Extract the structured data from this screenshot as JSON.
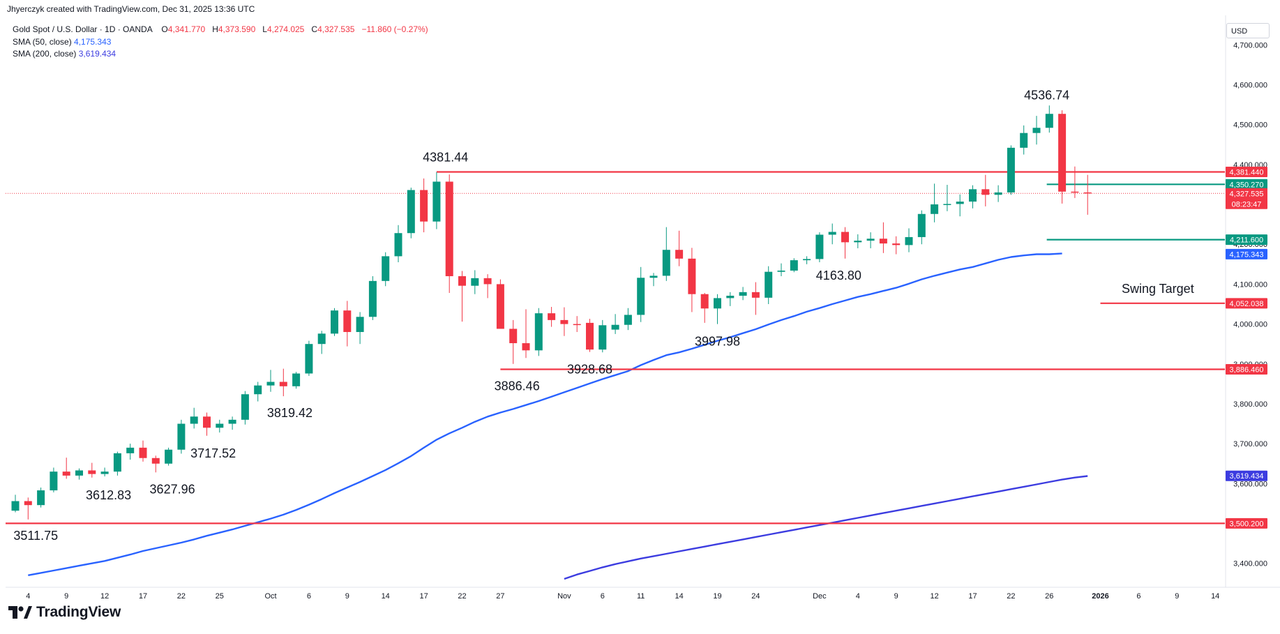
{
  "header": {
    "text": "Jhyerczyk created with TradingView.com, Dec 31, 2025 13:36 UTC"
  },
  "legend": {
    "title": "Gold Spot / U.S. Dollar · 1D · OANDA",
    "open_label": "O",
    "open": "4,341.770",
    "high_label": "H",
    "high": "4,373.590",
    "low_label": "L",
    "low": "4,274.025",
    "close_label": "C",
    "close": "4,327.535",
    "change": "−11.860 (−0.27%)",
    "sma50_label": "SMA (50, close)",
    "sma50_value": "4,175.343",
    "sma200_label": "SMA (200, close)",
    "sma200_value": "3,619.434"
  },
  "currency": "USD",
  "footer": {
    "brand": "TradingView",
    "logo_icon": "tradingview-logo-icon"
  },
  "colors": {
    "up": "#089981",
    "down": "#f23645",
    "sma50": "#2962ff",
    "sma200": "#3c3ce0",
    "level": "#f23645",
    "green_level": "#089981"
  },
  "chart_data": {
    "type": "candlestick",
    "symbol": "Gold Spot / U.S. Dollar",
    "timeframe": "1D",
    "ylim": [
      3340,
      4760
    ],
    "y_ticks": [
      3400,
      3500,
      3600,
      3700,
      3800,
      3900,
      4000,
      4100,
      4200,
      4300,
      4400,
      4500,
      4600,
      4700
    ],
    "y_tick_labels": [
      "3,400.000",
      "3,500.000",
      "3,600.000",
      "3,700.000",
      "3,800.000",
      "3,900.000",
      "4,000.000",
      "4,100.000",
      "4,200.000",
      "4,300.000",
      "4,400.000",
      "4,500.000",
      "4,600.000",
      "4,700.000"
    ],
    "x_ticks": [
      {
        "label": "4",
        "i": 1
      },
      {
        "label": "9",
        "i": 4
      },
      {
        "label": "12",
        "i": 7
      },
      {
        "label": "17",
        "i": 10
      },
      {
        "label": "22",
        "i": 13
      },
      {
        "label": "25",
        "i": 16
      },
      {
        "label": "Oct",
        "i": 20
      },
      {
        "label": "6",
        "i": 23
      },
      {
        "label": "9",
        "i": 26
      },
      {
        "label": "14",
        "i": 29
      },
      {
        "label": "17",
        "i": 32
      },
      {
        "label": "22",
        "i": 35
      },
      {
        "label": "27",
        "i": 38
      },
      {
        "label": "Nov",
        "i": 43
      },
      {
        "label": "6",
        "i": 46
      },
      {
        "label": "11",
        "i": 49
      },
      {
        "label": "14",
        "i": 52
      },
      {
        "label": "19",
        "i": 55
      },
      {
        "label": "24",
        "i": 58
      },
      {
        "label": "Dec",
        "i": 63
      },
      {
        "label": "4",
        "i": 66
      },
      {
        "label": "9",
        "i": 69
      },
      {
        "label": "12",
        "i": 72
      },
      {
        "label": "17",
        "i": 75
      },
      {
        "label": "22",
        "i": 78
      },
      {
        "label": "26",
        "i": 81
      },
      {
        "label": "2026",
        "i": 85
      },
      {
        "label": "6",
        "i": 88
      },
      {
        "label": "9",
        "i": 91
      },
      {
        "label": "14",
        "i": 94
      }
    ],
    "candles": [
      [
        3532,
        3572,
        3528,
        3556
      ],
      [
        3556,
        3565,
        3510,
        3546
      ],
      [
        3546,
        3590,
        3540,
        3583
      ],
      [
        3583,
        3640,
        3578,
        3630
      ],
      [
        3630,
        3665,
        3612,
        3620
      ],
      [
        3620,
        3638,
        3610,
        3633
      ],
      [
        3633,
        3652,
        3615,
        3624
      ],
      [
        3624,
        3640,
        3618,
        3630
      ],
      [
        3630,
        3680,
        3620,
        3676
      ],
      [
        3676,
        3700,
        3660,
        3690
      ],
      [
        3690,
        3708,
        3655,
        3664
      ],
      [
        3664,
        3670,
        3628,
        3650
      ],
      [
        3650,
        3690,
        3645,
        3685
      ],
      [
        3685,
        3760,
        3675,
        3750
      ],
      [
        3750,
        3790,
        3738,
        3768
      ],
      [
        3768,
        3778,
        3720,
        3740
      ],
      [
        3740,
        3760,
        3728,
        3750
      ],
      [
        3750,
        3768,
        3735,
        3760
      ],
      [
        3760,
        3832,
        3748,
        3824
      ],
      [
        3824,
        3855,
        3806,
        3846
      ],
      [
        3846,
        3885,
        3830,
        3855
      ],
      [
        3855,
        3888,
        3819,
        3844
      ],
      [
        3844,
        3880,
        3838,
        3876
      ],
      [
        3876,
        3958,
        3870,
        3950
      ],
      [
        3950,
        3983,
        3925,
        3976
      ],
      [
        3976,
        4040,
        3970,
        4034
      ],
      [
        4034,
        4058,
        3944,
        3980
      ],
      [
        3980,
        4030,
        3950,
        4018
      ],
      [
        4018,
        4120,
        4010,
        4108
      ],
      [
        4108,
        4180,
        4095,
        4170
      ],
      [
        4170,
        4248,
        4155,
        4228
      ],
      [
        4228,
        4342,
        4215,
        4336
      ],
      [
        4336,
        4365,
        4230,
        4257
      ],
      [
        4257,
        4381,
        4238,
        4357
      ],
      [
        4357,
        4375,
        4078,
        4120
      ],
      [
        4120,
        4133,
        4006,
        4096
      ],
      [
        4096,
        4135,
        4075,
        4115
      ],
      [
        4115,
        4125,
        4065,
        4100
      ],
      [
        4100,
        4112,
        4002,
        3988
      ],
      [
        3988,
        4010,
        3900,
        3952
      ],
      [
        3952,
        4037,
        3915,
        3934
      ],
      [
        3934,
        4040,
        3920,
        4027
      ],
      [
        4027,
        4043,
        3993,
        4010
      ],
      [
        4010,
        4042,
        3970,
        4000
      ],
      [
        4000,
        4020,
        3980,
        3999
      ],
      [
        4003,
        4013,
        3930,
        3936
      ],
      [
        3936,
        4010,
        3929,
        3997
      ],
      [
        3986,
        4025,
        3975,
        3998
      ],
      [
        3998,
        4040,
        3985,
        4023
      ],
      [
        4023,
        4143,
        4005,
        4116
      ],
      [
        4116,
        4128,
        4095,
        4121
      ],
      [
        4121,
        4243,
        4108,
        4186
      ],
      [
        4186,
        4234,
        4145,
        4164
      ],
      [
        4164,
        4191,
        4030,
        4075
      ],
      [
        4075,
        4078,
        4003,
        4039
      ],
      [
        4039,
        4075,
        4000,
        4065
      ],
      [
        4065,
        4080,
        4045,
        4071
      ],
      [
        4071,
        4093,
        4060,
        4080
      ],
      [
        4080,
        4105,
        4023,
        4066
      ],
      [
        4066,
        4145,
        4050,
        4131
      ],
      [
        4131,
        4152,
        4120,
        4134
      ],
      [
        4134,
        4165,
        4130,
        4160
      ],
      [
        4160,
        4170,
        4150,
        4163
      ],
      [
        4163,
        4230,
        4155,
        4224
      ],
      [
        4224,
        4252,
        4200,
        4231
      ],
      [
        4231,
        4243,
        4164,
        4205
      ],
      [
        4205,
        4225,
        4190,
        4209
      ],
      [
        4209,
        4230,
        4190,
        4214
      ],
      [
        4214,
        4255,
        4178,
        4202
      ],
      [
        4202,
        4220,
        4175,
        4198
      ],
      [
        4198,
        4240,
        4180,
        4218
      ],
      [
        4218,
        4285,
        4200,
        4276
      ],
      [
        4276,
        4352,
        4255,
        4300
      ],
      [
        4300,
        4349,
        4283,
        4301
      ],
      [
        4301,
        4325,
        4270,
        4307
      ],
      [
        4307,
        4348,
        4290,
        4338
      ],
      [
        4338,
        4374,
        4295,
        4324
      ],
      [
        4324,
        4348,
        4306,
        4330
      ],
      [
        4330,
        4448,
        4324,
        4442
      ],
      [
        4442,
        4498,
        4425,
        4479
      ],
      [
        4479,
        4522,
        4450,
        4492
      ],
      [
        4492,
        4548,
        4480,
        4527
      ],
      [
        4527,
        4536,
        4302,
        4332
      ],
      [
        4332,
        4395,
        4316,
        4330
      ],
      [
        4330,
        4374,
        4274,
        4328
      ]
    ],
    "sma50": {
      "name": "SMA (50, close)",
      "start_i": 1,
      "values": [
        3370,
        3376,
        3382,
        3388,
        3394,
        3400,
        3406,
        3414,
        3422,
        3431,
        3438,
        3445,
        3452,
        3460,
        3469,
        3477,
        3485,
        3494,
        3503,
        3512,
        3522,
        3534,
        3547,
        3561,
        3576,
        3590,
        3604,
        3619,
        3634,
        3651,
        3669,
        3690,
        3710,
        3726,
        3740,
        3755,
        3768,
        3778,
        3787,
        3797,
        3807,
        3818,
        3829,
        3840,
        3851,
        3862,
        3872,
        3882,
        3897,
        3910,
        3922,
        3929,
        3938,
        3948,
        3958,
        3967,
        3977,
        3987,
        3999,
        4010,
        4020,
        4031,
        4040,
        4050,
        4059,
        4068,
        4075,
        4083,
        4091,
        4101,
        4112,
        4121,
        4129,
        4137,
        4143,
        4152,
        4161,
        4168,
        4172,
        4175,
        4175,
        4177
      ]
    },
    "sma200": {
      "name": "SMA (200, close)",
      "start_i": 43,
      "values": [
        3361,
        3372,
        3381,
        3390,
        3398,
        3405,
        3412,
        3418,
        3424,
        3430,
        3436,
        3442,
        3448,
        3454,
        3460,
        3466,
        3472,
        3478,
        3484,
        3490,
        3496,
        3502,
        3508,
        3514,
        3520,
        3526,
        3532,
        3538,
        3544,
        3550,
        3556,
        3562,
        3568,
        3574,
        3580,
        3586,
        3592,
        3598,
        3604,
        3610,
        3615,
        3619
      ]
    },
    "levels": [
      {
        "name": "resistance-4381",
        "value": 4381.44,
        "from_i": 33,
        "color": "#f23645",
        "price_label": "4,381.440"
      },
      {
        "name": "support-3886",
        "value": 3886.46,
        "from_i": 38,
        "color": "#f23645",
        "price_label": "3,886.460"
      },
      {
        "name": "support-3500",
        "value": 3500.2,
        "from_i": -1,
        "color": "#f23645",
        "price_label": "3,500.200"
      },
      {
        "name": "swing-target",
        "value": 4052.038,
        "from_i": 85,
        "color": "#f23645",
        "price_label": "4,052.038"
      },
      {
        "name": "green-4350",
        "value": 4350.27,
        "from_i": 80.8,
        "color": "#089981",
        "price_label": "4,350.270"
      },
      {
        "name": "green-4211",
        "value": 4211.6,
        "from_i": 80.8,
        "color": "#089981",
        "price_label": "4,211.600"
      }
    ],
    "last_price": {
      "value": 4327.535,
      "label": "4,327.535",
      "countdown": "08:23:47"
    },
    "sma_price_labels": [
      {
        "value": 4175.343,
        "label": "4,175.343",
        "color": "#2962ff"
      },
      {
        "value": 3619.434,
        "label": "3,619.434",
        "color": "#3c3ce0"
      }
    ],
    "annotations": [
      {
        "text": "4536.74",
        "i": 80.8,
        "price": 4536.74,
        "pos": "above"
      },
      {
        "text": "4381.44",
        "i": 33.7,
        "price": 4381.44,
        "pos": "above"
      },
      {
        "text": "4163.80",
        "i": 64.5,
        "price": 4163.8,
        "pos": "below"
      },
      {
        "text": "3997.98",
        "i": 55,
        "price": 3997.98,
        "pos": "below"
      },
      {
        "text": "3928.68",
        "i": 45,
        "price": 3928.68,
        "pos": "below"
      },
      {
        "text": "3886.46",
        "i": 39.3,
        "price": 3886.46,
        "pos": "below"
      },
      {
        "text": "3819.42",
        "i": 21.5,
        "price": 3819.42,
        "pos": "below"
      },
      {
        "text": "3717.52",
        "i": 15.5,
        "price": 3717.52,
        "pos": "below"
      },
      {
        "text": "3627.96",
        "i": 12.3,
        "price": 3627.96,
        "pos": "below"
      },
      {
        "text": "3612.83",
        "i": 7.3,
        "price": 3612.83,
        "pos": "below"
      },
      {
        "text": "3511.75",
        "i": 1.6,
        "price": 3511.75,
        "pos": "below"
      },
      {
        "text": "Swing Target",
        "i": 89.5,
        "price": 4052.038,
        "pos": "above"
      }
    ]
  }
}
